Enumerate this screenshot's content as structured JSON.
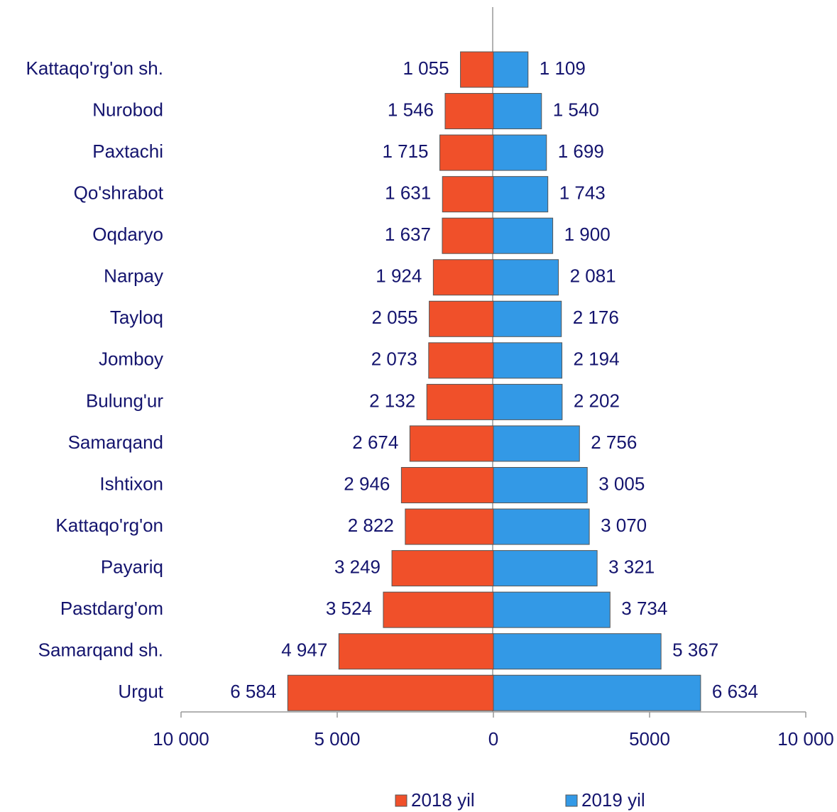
{
  "chart_data": {
    "type": "butterfly-bar",
    "categories": [
      "Kattaqo'rg'on sh.",
      "Nurobod",
      "Paxtachi",
      "Qo'shrabot",
      "Oqdaryo",
      "Narpay",
      "Tayloq",
      "Jomboy",
      "Bulung'ur",
      "Samarqand",
      "Ishtixon",
      "Kattaqo'rg'on",
      "Payariq",
      "Pastdarg'om",
      "Samarqand sh.",
      "Urgut"
    ],
    "series": [
      {
        "name": "2018 yil",
        "color": "#f0502a",
        "values": [
          1055,
          1546,
          1715,
          1631,
          1637,
          1924,
          2055,
          2073,
          2132,
          2674,
          2946,
          2822,
          3249,
          3524,
          4947,
          6584
        ],
        "value_labels": [
          "1 055",
          "1 546",
          "1 715",
          "1 631",
          "1 637",
          "1 924",
          "2 055",
          "2 073",
          "2 132",
          "2 674",
          "2 946",
          "2 822",
          "3 249",
          "3 524",
          "4 947",
          "6 584"
        ]
      },
      {
        "name": "2019 yil",
        "color": "#3399e6",
        "values": [
          1109,
          1540,
          1699,
          1743,
          1900,
          2081,
          2176,
          2194,
          2202,
          2756,
          3005,
          3070,
          3321,
          3734,
          5367,
          6634
        ],
        "value_labels": [
          "1 109",
          "1 540",
          "1 699",
          "1 743",
          "1 900",
          "2 081",
          "2 176",
          "2 194",
          "2 202",
          "2 756",
          "3 005",
          "3 070",
          "3 321",
          "3 734",
          "5 367",
          "6 634"
        ]
      }
    ],
    "xlim": [
      -10000,
      10000
    ],
    "xticks": [
      {
        "value": -10000,
        "label": "10 000"
      },
      {
        "value": -5000,
        "label": "5 000"
      },
      0,
      5000,
      {
        "value": 10000,
        "label": "10 000"
      }
    ],
    "legend": "bottom"
  }
}
